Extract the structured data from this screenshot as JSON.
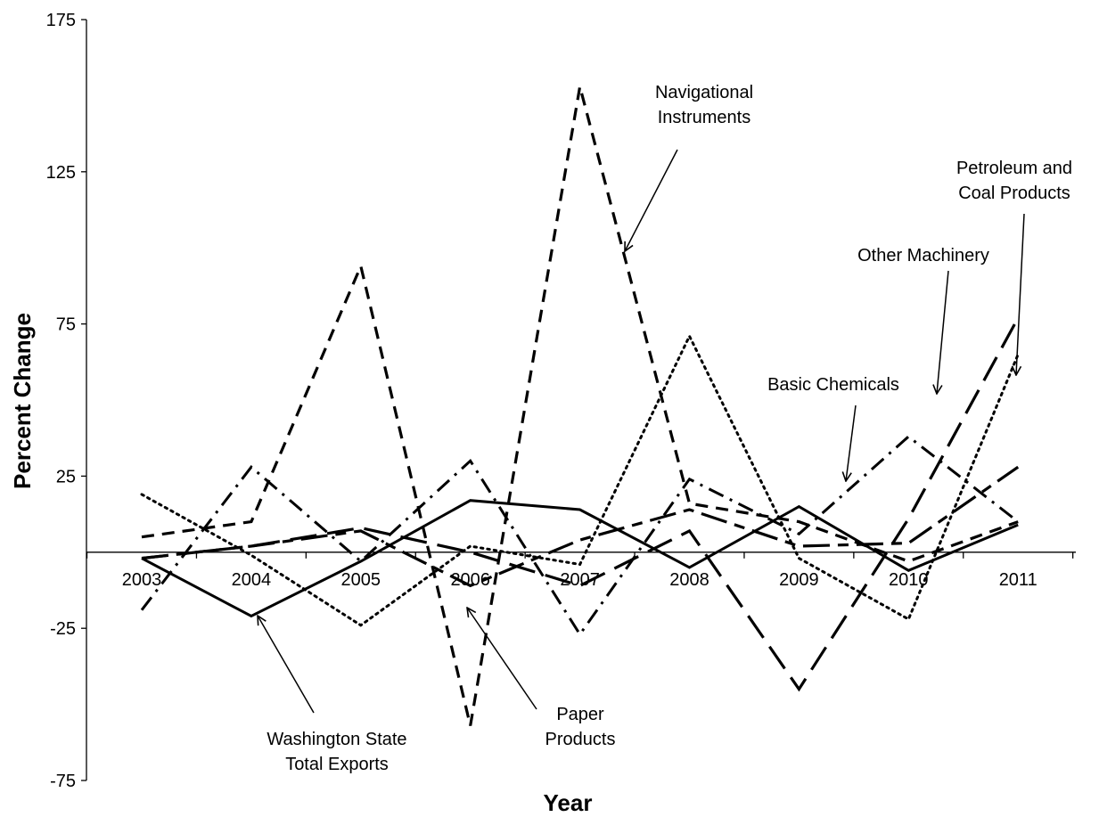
{
  "chart_data": {
    "type": "line",
    "xlabel": "Year",
    "ylabel": "Percent Change",
    "ylim": [
      -75,
      175
    ],
    "yticks": [
      175,
      125,
      75,
      25,
      -25,
      -75
    ],
    "ytick_labels": [
      "175",
      "125",
      "75",
      "25",
      "-25",
      "-75"
    ],
    "categories": [
      "2003",
      "2004",
      "2005",
      "2006",
      "2007",
      "2008",
      "2009",
      "2010",
      "2011"
    ],
    "grid": false,
    "legend": "none",
    "series": [
      {
        "name": "Washington State Total Exports",
        "style": "solid",
        "values": [
          -2,
          -21,
          -3,
          17,
          14,
          -5,
          15,
          -6,
          9
        ]
      },
      {
        "name": "Navigational Instruments",
        "style": "short-dash",
        "values": [
          5,
          10,
          94,
          -57,
          153,
          16,
          10,
          -3,
          10
        ]
      },
      {
        "name": "Petroleum and Coal Products",
        "style": "dotted",
        "values": [
          19,
          -1,
          -24,
          2,
          -4,
          71,
          -2,
          -22,
          65
        ]
      },
      {
        "name": "Other Machinery",
        "style": "long-dash",
        "values": [
          -2,
          2,
          8,
          0,
          -11,
          7,
          -45,
          11,
          77
        ]
      },
      {
        "name": "Basic Chemicals",
        "style": "dash-dot",
        "values": [
          -19,
          28,
          -3,
          30,
          -27,
          24,
          6,
          38,
          10
        ]
      },
      {
        "name": "Paper Products",
        "style": "long-short-dash",
        "values": [
          -2,
          2,
          7,
          -11,
          4,
          14,
          2,
          3,
          28
        ]
      }
    ],
    "annotations": [
      {
        "lines": [
          "Navigational",
          "Instruments"
        ],
        "series": "Navigational Instruments"
      },
      {
        "lines": [
          "Petroleum and",
          "Coal Products"
        ],
        "series": "Petroleum and Coal Products"
      },
      {
        "lines": [
          "Other Machinery"
        ],
        "series": "Other Machinery"
      },
      {
        "lines": [
          "Basic Chemicals"
        ],
        "series": "Basic Chemicals"
      },
      {
        "lines": [
          "Washington State",
          "Total Exports"
        ],
        "series": "Washington State Total Exports"
      },
      {
        "lines": [
          "Paper",
          "Products"
        ],
        "series": "Paper Products"
      }
    ]
  }
}
